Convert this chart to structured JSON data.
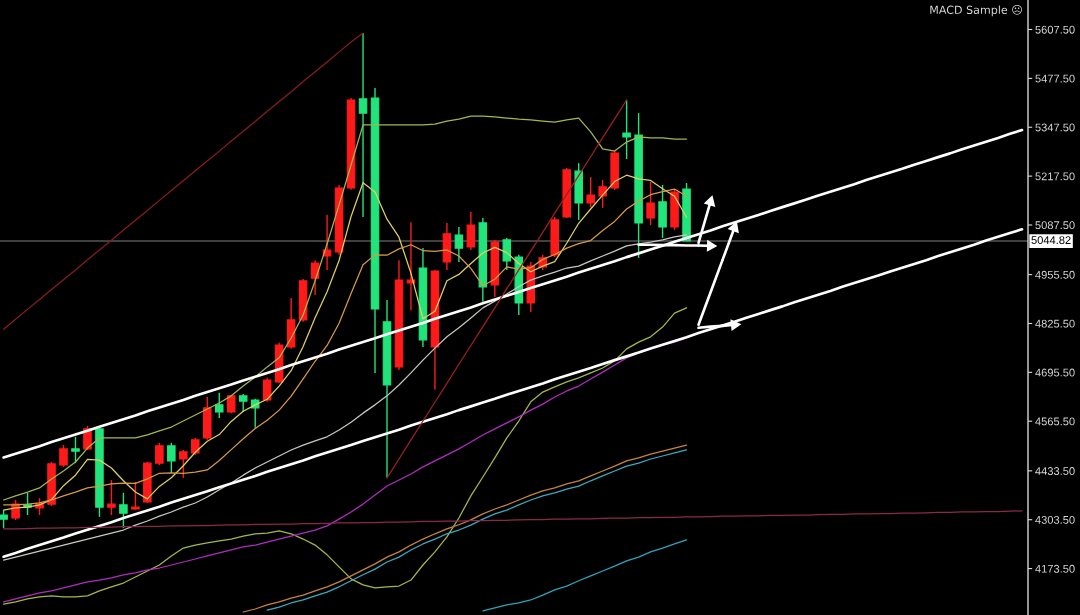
{
  "chart_data": {
    "type": "candlestick",
    "categories": [
      null,
      null,
      null,
      null,
      null,
      null,
      null,
      null,
      null,
      null,
      null,
      null,
      null,
      null,
      null,
      null,
      null,
      null,
      null,
      null,
      null,
      null,
      null,
      null,
      null,
      null,
      null,
      null,
      null,
      null,
      null,
      null,
      null,
      null,
      null,
      null,
      null,
      null,
      null,
      null,
      null,
      null,
      null,
      null,
      null,
      null,
      null,
      null,
      null,
      null,
      null,
      null,
      null,
      null,
      null,
      null,
      null,
      null,
      null,
      null,
      null,
      null,
      null,
      null,
      null,
      null,
      null,
      null,
      null,
      null,
      null,
      null,
      null,
      null,
      null,
      null,
      null,
      null,
      null,
      null,
      null,
      null,
      null,
      null,
      null,
      null
    ],
    "ohlc": [
      [
        4316,
        4329,
        4281,
        4305
      ],
      [
        4308,
        4356,
        4303,
        4345
      ],
      [
        4343,
        4375,
        4316,
        4337
      ],
      [
        4335,
        4361,
        4316,
        4345
      ],
      [
        4345,
        4457,
        4340,
        4452
      ],
      [
        4449,
        4502,
        4444,
        4492
      ],
      [
        4492,
        4524,
        4454,
        4486
      ],
      [
        4492,
        4553,
        4489,
        4545
      ],
      [
        4545,
        4548,
        4311,
        4337
      ],
      [
        4337,
        4409,
        4316,
        4345
      ],
      [
        4343,
        4375,
        4281,
        4321
      ],
      [
        4332,
        4404,
        4329,
        4337
      ],
      [
        4351,
        4457,
        4348,
        4454
      ],
      [
        4454,
        4508,
        4449,
        4500
      ],
      [
        4500,
        4508,
        4428,
        4460
      ],
      [
        4465,
        4489,
        4415,
        4484
      ],
      [
        4481,
        4521,
        4476,
        4516
      ],
      [
        4521,
        4630,
        4516,
        4601
      ],
      [
        4609,
        4641,
        4574,
        4590
      ],
      [
        4590,
        4635,
        4587,
        4633
      ],
      [
        4633,
        4638,
        4590,
        4619
      ],
      [
        4622,
        4625,
        4548,
        4601
      ],
      [
        4622,
        4681,
        4617,
        4675
      ],
      [
        4670,
        4774,
        4667,
        4768
      ],
      [
        4763,
        4893,
        4758,
        4835
      ],
      [
        4835,
        4944,
        4830,
        4939
      ],
      [
        4946,
        4994,
        4901,
        4986
      ],
      [
        5005,
        5114,
        4968,
        5021
      ],
      [
        5016,
        5194,
        5008,
        5186
      ],
      [
        5186,
        5425,
        5181,
        5420
      ],
      [
        5423,
        5598,
        5109,
        5385
      ],
      [
        5425,
        5452,
        4694,
        4864
      ],
      [
        4830,
        4888,
        4415,
        4662
      ],
      [
        4710,
        4994,
        4702,
        4941
      ],
      [
        4933,
        5095,
        4861,
        4941
      ],
      [
        4973,
        5026,
        4763,
        4782
      ],
      [
        4763,
        4968,
        4649,
        4965
      ],
      [
        4989,
        5093,
        4968,
        5064
      ],
      [
        5061,
        5082,
        4989,
        5026
      ],
      [
        5029,
        5122,
        5021,
        5087
      ],
      [
        5093,
        5106,
        4883,
        4923
      ],
      [
        4928,
        5048,
        4896,
        5042
      ],
      [
        5048,
        5053,
        4968,
        4992
      ],
      [
        5002,
        5008,
        4848,
        4880
      ],
      [
        4880,
        4989,
        4856,
        4978
      ],
      [
        4976,
        5008,
        4968,
        5000
      ],
      [
        5008,
        5109,
        5002,
        5101
      ],
      [
        5109,
        5239,
        5106,
        5234
      ],
      [
        5231,
        5252,
        5101,
        5146
      ],
      [
        5146,
        5215,
        5135,
        5167
      ],
      [
        5165,
        5207,
        5133,
        5189
      ],
      [
        5186,
        5284,
        5181,
        5279
      ],
      [
        5332,
        5420,
        5263,
        5322
      ],
      [
        5327,
        5385,
        5000,
        5093
      ],
      [
        5106,
        5202,
        5087,
        5146
      ],
      [
        5149,
        5194,
        5053,
        5082
      ],
      [
        5082,
        5181,
        5074,
        5175
      ],
      [
        5183,
        5199,
        5044.82,
        5044.82
      ],
      null,
      null,
      null,
      null,
      null,
      null,
      null,
      null,
      null,
      null,
      null,
      null,
      null,
      null,
      null,
      null,
      null,
      null,
      null,
      null,
      null,
      null,
      null,
      null,
      null,
      null,
      null,
      null
    ],
    "colors": [
      "#21e57a",
      "#ff1a1a",
      "#21e57a",
      "#ff1a1a",
      "#ff1a1a",
      "#ff1a1a",
      "#21e57a",
      "#ff1a1a",
      "#21e57a",
      "#ff1a1a",
      "#21e57a",
      "#ff1a1a",
      "#ff1a1a",
      "#ff1a1a",
      "#21e57a",
      "#ff1a1a",
      "#ff1a1a",
      "#ff1a1a",
      "#21e57a",
      "#ff1a1a",
      "#21e57a",
      "#21e57a",
      "#ff1a1a",
      "#ff1a1a",
      "#ff1a1a",
      "#ff1a1a",
      "#ff1a1a",
      "#ff1a1a",
      "#ff1a1a",
      "#ff1a1a",
      "#21e57a",
      "#21e57a",
      "#21e57a",
      "#ff1a1a",
      "#ff1a1a",
      "#21e57a",
      "#ff1a1a",
      "#ff1a1a",
      "#21e57a",
      "#ff1a1a",
      "#21e57a",
      "#ff1a1a",
      "#21e57a",
      "#21e57a",
      "#ff1a1a",
      "#ff1a1a",
      "#ff1a1a",
      "#ff1a1a",
      "#21e57a",
      "#ff1a1a",
      "#ff1a1a",
      "#ff1a1a",
      "#21e57a",
      "#21e57a",
      "#ff1a1a",
      "#21e57a",
      "#ff1a1a",
      "#21e57a",
      null,
      null,
      null,
      null,
      null,
      null,
      null,
      null,
      null,
      null,
      null,
      null,
      null,
      null,
      null,
      null,
      null,
      null,
      null,
      null,
      null,
      null,
      null,
      null,
      null,
      null,
      null,
      null
    ],
    "series": [
      {
        "type": "line",
        "color": "#a4b848",
        "values": [
          4356,
          4367,
          4377,
          4388,
          4412,
          4433,
          4457,
          4494,
          4521,
          4521,
          4521,
          4521,
          4529,
          4540,
          4550,
          4566,
          4582,
          4598,
          4614,
          4633,
          4659,
          4683,
          4710,
          4734,
          4787,
          4848,
          4939,
          5037,
          5141,
          5247,
          5354,
          5354,
          5354,
          5354,
          5354,
          5354,
          5356,
          5364,
          5369,
          5377,
          5377,
          5375,
          5372,
          5369,
          5367,
          5364,
          5361,
          5367,
          5372,
          5335,
          5290,
          5284,
          5308,
          5322,
          5319,
          5319,
          5316,
          5316,
          null,
          null,
          null,
          null,
          null,
          null,
          null,
          null,
          null,
          null,
          null,
          null,
          null,
          null,
          null,
          null,
          null,
          null,
          null,
          null,
          null,
          null,
          null,
          null,
          null,
          null,
          null,
          null
        ]
      },
      {
        "type": "line",
        "color": "#a4b848",
        "values": [
          4079,
          4085,
          4093,
          4098,
          4101,
          4098,
          4098,
          4101,
          4114,
          4125,
          4135,
          4151,
          4167,
          4183,
          4207,
          4228,
          4236,
          4242,
          4247,
          4252,
          4260,
          4266,
          4268,
          4274,
          4266,
          4252,
          4236,
          4210,
          4178,
          4146,
          4130,
          4122,
          4125,
          4127,
          4143,
          4183,
          4218,
          4258,
          4308,
          4367,
          4417,
          4468,
          4521,
          4566,
          4617,
          4643,
          4657,
          4670,
          4681,
          4694,
          4707,
          4726,
          4758,
          4776,
          4790,
          4816,
          4853,
          4867,
          null,
          null,
          null,
          null,
          null,
          null,
          null,
          null,
          null,
          null,
          null,
          null,
          null,
          null,
          null,
          null,
          null,
          null,
          null,
          null,
          null,
          null,
          null,
          null,
          null,
          null,
          null,
          null
        ]
      },
      {
        "type": "line",
        "color": "#e0d060",
        "values": [
          4329,
          4335,
          4337,
          4343,
          4357,
          4394,
          4422,
          4464,
          4462,
          4441,
          4407,
          4377,
          4359,
          4392,
          4415,
          4447,
          4483,
          4512,
          4530,
          4565,
          4592,
          4609,
          4624,
          4659,
          4700,
          4764,
          4841,
          4910,
          4993,
          5110,
          5200,
          5175,
          5103,
          5055,
          4959,
          4838,
          4858,
          4939,
          4956,
          4985,
          5013,
          5028,
          5014,
          4985,
          4963,
          4978,
          4990,
          5039,
          5092,
          5130,
          5167,
          5203,
          5220,
          5210,
          5206,
          5184,
          5164,
          5108,
          null,
          null,
          null,
          null,
          null,
          null,
          null,
          null,
          null,
          null,
          null,
          null,
          null,
          null,
          null,
          null,
          null,
          null,
          null,
          null,
          null,
          null,
          null,
          null,
          null,
          null,
          null,
          null
        ]
      },
      {
        "type": "line",
        "color": "#d89a40",
        "values": [
          4343,
          4343,
          4345,
          4348,
          4356,
          4367,
          4377,
          4388,
          4393,
          4399,
          4401,
          4400,
          4412,
          4427,
          4428,
          4427,
          4430,
          4436,
          4461,
          4490,
          4519,
          4546,
          4568,
          4595,
          4632,
          4678,
          4725,
          4767,
          4826,
          4905,
          4982,
          5008,
          5007,
          5024,
          5035,
          5019,
          5017,
          5021,
          5005,
          4972,
          4926,
          4943,
          4976,
          4970,
          4974,
          4996,
          5009,
          5026,
          5038,
          5046,
          5073,
          5097,
          5130,
          5151,
          5168,
          5176,
          5183,
          5164,
          null,
          null,
          null,
          null,
          null,
          null,
          null,
          null,
          null,
          null,
          null,
          null,
          null,
          null,
          null,
          null,
          null,
          null,
          null,
          null,
          null,
          null,
          null,
          null,
          null,
          null,
          null,
          null
        ]
      },
      {
        "type": "line",
        "color": "#c8c8c0",
        "values": [
          4196,
          4204,
          4212,
          4220,
          4228,
          4236,
          4244,
          4252,
          4260,
          4268,
          4276,
          4289,
          4300,
          4313,
          4324,
          4337,
          4348,
          4364,
          4383,
          4401,
          4422,
          4441,
          4457,
          4473,
          4489,
          4502,
          4513,
          4524,
          4542,
          4563,
          4587,
          4609,
          4633,
          4662,
          4694,
          4728,
          4760,
          4790,
          4814,
          4840,
          4867,
          4885,
          4904,
          4923,
          4941,
          4952,
          4962,
          4973,
          4978,
          4992,
          5005,
          5018,
          5032,
          5037,
          5042,
          5048,
          5056,
          5061,
          null,
          null,
          null,
          null,
          null,
          null,
          null,
          null,
          null,
          null,
          null,
          null,
          null,
          null,
          null,
          null,
          null,
          null,
          null,
          null,
          null,
          null,
          null,
          null,
          null,
          null,
          null,
          null
        ]
      },
      {
        "type": "line",
        "color": "#b02cc0",
        "values": [
          4085,
          4093,
          4101,
          4109,
          4114,
          4122,
          4130,
          4138,
          4143,
          4149,
          4157,
          4162,
          4170,
          4175,
          4183,
          4191,
          4199,
          4207,
          4215,
          4223,
          4231,
          4236,
          4244,
          4252,
          4260,
          4268,
          4276,
          4287,
          4305,
          4324,
          4345,
          4369,
          4393,
          4409,
          4425,
          4444,
          4460,
          4476,
          4492,
          4510,
          4529,
          4545,
          4561,
          4577,
          4595,
          4611,
          4630,
          4646,
          4659,
          4678,
          4696,
          4715,
          4734,
          4747,
          4758,
          4768,
          4776,
          4787,
          null,
          null,
          null,
          null,
          null,
          null,
          null,
          null,
          null,
          null,
          null,
          null,
          null,
          null,
          null,
          null,
          null,
          null,
          null,
          null,
          null,
          null,
          null,
          null,
          null,
          null,
          null,
          null
        ]
      },
      {
        "type": "line",
        "color": "#c8843a",
        "values": [
          null,
          null,
          null,
          null,
          null,
          null,
          null,
          null,
          null,
          null,
          null,
          null,
          null,
          null,
          null,
          null,
          null,
          null,
          null,
          null,
          4058,
          4066,
          4077,
          4085,
          4095,
          4103,
          4114,
          4125,
          4138,
          4154,
          4170,
          4186,
          4204,
          4218,
          4236,
          4252,
          4266,
          4279,
          4290,
          4303,
          4319,
          4332,
          4343,
          4356,
          4369,
          4380,
          4388,
          4399,
          4407,
          4420,
          4433,
          4446,
          4460,
          4468,
          4478,
          4486,
          4494,
          4502,
          null,
          null,
          null,
          null,
          null,
          null,
          null,
          null,
          null,
          null,
          null,
          null,
          null,
          null,
          null,
          null,
          null,
          null,
          null,
          null,
          null,
          null,
          null,
          null,
          null,
          null,
          null,
          null
        ]
      },
      {
        "type": "line",
        "color": "#3aaac0",
        "values": [
          null,
          null,
          null,
          null,
          null,
          null,
          null,
          null,
          null,
          null,
          null,
          null,
          null,
          null,
          null,
          null,
          null,
          null,
          null,
          null,
          null,
          null,
          4063,
          4071,
          4082,
          4090,
          4101,
          4111,
          4125,
          4141,
          4157,
          4172,
          4191,
          4204,
          4223,
          4239,
          4252,
          4266,
          4276,
          4289,
          4305,
          4319,
          4329,
          4343,
          4356,
          4367,
          4375,
          4385,
          4393,
          4407,
          4420,
          4433,
          4446,
          4454,
          4465,
          4473,
          4481,
          4489,
          null,
          null,
          null,
          null,
          null,
          null,
          null,
          null,
          null,
          null,
          null,
          null,
          null,
          null,
          null,
          null,
          null,
          null,
          null,
          null,
          null,
          null,
          null,
          null,
          null,
          null,
          null,
          null
        ]
      },
      {
        "type": "line",
        "color": "#2fa4bc",
        "values": [
          null,
          null,
          null,
          null,
          null,
          null,
          null,
          null,
          null,
          null,
          null,
          null,
          null,
          null,
          null,
          null,
          null,
          null,
          null,
          null,
          null,
          null,
          null,
          null,
          null,
          null,
          null,
          null,
          null,
          null,
          null,
          null,
          null,
          null,
          null,
          null,
          null,
          null,
          null,
          null,
          4061,
          4069,
          4077,
          4082,
          4090,
          4103,
          4117,
          4127,
          4141,
          4154,
          4167,
          4180,
          4194,
          4204,
          4218,
          4228,
          4239,
          4250,
          null,
          null,
          null,
          null,
          null,
          null,
          null,
          null,
          null,
          null,
          null,
          null,
          null,
          null,
          null,
          null,
          null,
          null,
          null,
          null,
          null,
          null,
          null,
          null,
          null,
          null,
          null,
          null
        ]
      },
      {
        "type": "line",
        "color": "#ffffff",
        "values": [
          4469,
          4479,
          4489,
          4499,
          4510,
          4520,
          4530,
          4540,
          4551,
          4561,
          4571,
          4581,
          4592,
          4602,
          4612,
          4622,
          4633,
          4643,
          4653,
          4663,
          4674,
          4684,
          4694,
          4704,
          4715,
          4725,
          4735,
          4745,
          4756,
          4766,
          4776,
          4786,
          4797,
          4807,
          4817,
          4827,
          4838,
          4848,
          4858,
          4868,
          4879,
          4889,
          4899,
          4909,
          4920,
          4930,
          4940,
          4950,
          4961,
          4971,
          4981,
          4991,
          5002,
          5012,
          5022,
          5032,
          5043,
          5053,
          5063,
          5073,
          5084,
          5094,
          5104,
          5114,
          5125,
          5135,
          5145,
          5155,
          5166,
          5176,
          5186,
          5196,
          5207,
          5217,
          5227,
          5237,
          5248,
          5258,
          5268,
          5278,
          5289,
          5299,
          5309,
          5319,
          5330,
          5340
        ]
      },
      {
        "type": "line",
        "color": "#ffffff",
        "values": [
          4205,
          4215,
          4226,
          4236,
          4246,
          4256,
          4267,
          4277,
          4287,
          4297,
          4308,
          4318,
          4328,
          4338,
          4349,
          4359,
          4369,
          4379,
          4390,
          4400,
          4410,
          4420,
          4431,
          4441,
          4451,
          4461,
          4472,
          4482,
          4492,
          4502,
          4513,
          4523,
          4533,
          4543,
          4554,
          4564,
          4574,
          4584,
          4595,
          4605,
          4615,
          4625,
          4636,
          4646,
          4656,
          4666,
          4677,
          4687,
          4697,
          4707,
          4718,
          4728,
          4738,
          4748,
          4759,
          4769,
          4779,
          4789,
          4800,
          4810,
          4820,
          4830,
          4841,
          4851,
          4861,
          4871,
          4882,
          4892,
          4902,
          4912,
          4923,
          4933,
          4943,
          4953,
          4964,
          4974,
          4984,
          4994,
          5005,
          5015,
          5025,
          5035,
          5046,
          5056,
          5066,
          5076
        ]
      },
      {
        "type": "line",
        "color": "#8b1c1c",
        "values": [
          4810,
          4837,
          4863,
          4889,
          4916,
          4942,
          4968,
          4995,
          5021,
          5047,
          5074,
          5100,
          5126,
          5153,
          5179,
          5205,
          5232,
          5258,
          5284,
          5311,
          5337,
          5363,
          5390,
          5416,
          5442,
          5469,
          5495,
          5521,
          5548,
          5574,
          5598,
          null,
          null,
          null,
          null,
          null,
          null,
          null,
          null,
          null,
          null,
          null,
          null,
          null,
          null,
          null,
          null,
          null,
          null,
          null,
          null,
          null,
          null,
          null,
          null,
          null,
          null,
          null,
          null,
          null,
          null,
          null,
          null,
          null,
          null,
          null,
          null,
          null,
          null,
          null,
          null,
          null,
          null,
          null,
          null,
          null,
          null,
          null,
          null,
          null,
          null,
          null,
          null,
          null,
          null,
          null
        ]
      },
      {
        "type": "line",
        "color": "#a02020",
        "values": [
          null,
          null,
          null,
          null,
          null,
          null,
          null,
          null,
          null,
          null,
          null,
          null,
          null,
          null,
          null,
          null,
          null,
          null,
          null,
          null,
          null,
          null,
          null,
          null,
          null,
          null,
          null,
          null,
          null,
          null,
          null,
          null,
          4415,
          4465,
          4516,
          4566,
          4616,
          4666,
          4717,
          4767,
          4817,
          4867,
          4918,
          4968,
          5018,
          5068,
          5119,
          5169,
          5219,
          5269,
          5320,
          5370,
          5420,
          null,
          null,
          null,
          null,
          null,
          null,
          null,
          null,
          null,
          null,
          null,
          null,
          null,
          null,
          null,
          null,
          null,
          null,
          null,
          null,
          null,
          null,
          null,
          null,
          null,
          null,
          null,
          null,
          null,
          null,
          null,
          null,
          null
        ]
      },
      {
        "type": "line",
        "color": "#8a2a4a",
        "values": [
          4279,
          4279,
          4280,
          4281,
          4281,
          4282,
          4282,
          4283,
          4283,
          4284,
          4285,
          4285,
          4286,
          4286,
          4287,
          4287,
          4288,
          4288,
          4289,
          4290,
          4290,
          4291,
          4291,
          4292,
          4292,
          4293,
          4293,
          4294,
          4295,
          4295,
          4296,
          4296,
          4297,
          4297,
          4298,
          4299,
          4299,
          4300,
          4300,
          4301,
          4301,
          4302,
          4302,
          4303,
          4304,
          4304,
          4305,
          4305,
          4306,
          4306,
          4307,
          4308,
          4308,
          4309,
          4309,
          4310,
          4310,
          4311,
          4311,
          4312,
          4313,
          4313,
          4314,
          4314,
          4315,
          4315,
          4316,
          4316,
          4317,
          4318,
          4318,
          4319,
          4319,
          4320,
          4320,
          4321,
          4321,
          4322,
          4323,
          4323,
          4324,
          4324,
          4325,
          4325,
          4326,
          4327
        ]
      },
      {
        "type": "line",
        "color": "#ffffff",
        "values": [
          null,
          null,
          null,
          null,
          null,
          null,
          null,
          null,
          null,
          null,
          null,
          null,
          null,
          null,
          null,
          null,
          null,
          null,
          null,
          null,
          null,
          null,
          null,
          null,
          null,
          null,
          null,
          null,
          null,
          null,
          null,
          null,
          null,
          null,
          null,
          null,
          null,
          null,
          null,
          null,
          null,
          null,
          null,
          null,
          null,
          null,
          null,
          null,
          null,
          null,
          null,
          null,
          null,
          5035,
          5035,
          5034,
          5034,
          5033,
          5033,
          null,
          null,
          null,
          null,
          null,
          null,
          null,
          null,
          null,
          null,
          null,
          null,
          null,
          null,
          null,
          null,
          null,
          null,
          null,
          null,
          null,
          null,
          null,
          null,
          null,
          null,
          null
        ]
      },
      {
        "type": "line",
        "color": "#ffffff",
        "marker": "triangle",
        "values": [
          null,
          null,
          null,
          null,
          null,
          null,
          null,
          null,
          null,
          null,
          null,
          null,
          null,
          null,
          null,
          null,
          null,
          null,
          null,
          null,
          null,
          null,
          null,
          null,
          null,
          null,
          null,
          null,
          null,
          null,
          null,
          null,
          null,
          null,
          null,
          null,
          null,
          null,
          null,
          null,
          null,
          null,
          null,
          null,
          null,
          null,
          null,
          null,
          null,
          null,
          null,
          null,
          null,
          null,
          null,
          null,
          null,
          null,
          5033,
          5032,
          null,
          null,
          null,
          null,
          null,
          null,
          null,
          null,
          null,
          null,
          null,
          null,
          null,
          null,
          null,
          null,
          null,
          null,
          null,
          null,
          null,
          null,
          null,
          null,
          null,
          null
        ]
      },
      {
        "type": "line",
        "color": "#ffffff",
        "marker": "triangle",
        "values": [
          null,
          null,
          null,
          null,
          null,
          null,
          null,
          null,
          null,
          null,
          null,
          null,
          null,
          null,
          null,
          null,
          null,
          null,
          null,
          null,
          null,
          null,
          null,
          null,
          null,
          null,
          null,
          null,
          null,
          null,
          null,
          null,
          null,
          null,
          null,
          null,
          null,
          null,
          null,
          null,
          null,
          null,
          null,
          null,
          null,
          null,
          null,
          null,
          null,
          null,
          null,
          null,
          null,
          null,
          null,
          null,
          null,
          null,
          5040,
          5149,
          null,
          null,
          null,
          null,
          null,
          null,
          null,
          null,
          null,
          null,
          null,
          null,
          null,
          null,
          null,
          null,
          null,
          null,
          null,
          null,
          null,
          null,
          null,
          null,
          null,
          null
        ]
      },
      {
        "type": "line",
        "color": "#ffffff",
        "values": [
          null,
          null,
          null,
          null,
          null,
          null,
          null,
          null,
          null,
          null,
          null,
          null,
          null,
          null,
          null,
          null,
          null,
          null,
          null,
          null,
          null,
          null,
          null,
          null,
          null,
          null,
          null,
          null,
          null,
          null,
          null,
          null,
          null,
          null,
          null,
          null,
          null,
          null,
          null,
          null,
          null,
          null,
          null,
          null,
          null,
          null,
          null,
          null,
          null,
          null,
          null,
          null,
          null,
          null,
          null,
          null,
          null,
          null,
          4822,
          4908,
          4994,
          null,
          null,
          null,
          null,
          null,
          null,
          null,
          null,
          null,
          null,
          null,
          null,
          null,
          null,
          null,
          null,
          null,
          null,
          null,
          null,
          null,
          null,
          null,
          null,
          null
        ]
      },
      {
        "type": "line",
        "color": "#ffffff",
        "marker": "triangle",
        "values": [
          null,
          null,
          null,
          null,
          null,
          null,
          null,
          null,
          null,
          null,
          null,
          null,
          null,
          null,
          null,
          null,
          null,
          null,
          null,
          null,
          null,
          null,
          null,
          null,
          null,
          null,
          null,
          null,
          null,
          null,
          null,
          null,
          null,
          null,
          null,
          null,
          null,
          null,
          null,
          null,
          null,
          null,
          null,
          null,
          null,
          null,
          null,
          null,
          null,
          null,
          null,
          null,
          null,
          null,
          null,
          null,
          null,
          null,
          null,
          null,
          4994,
          5080,
          null,
          null,
          null,
          null,
          null,
          null,
          null,
          null,
          null,
          null,
          null,
          null,
          null,
          null,
          null,
          null,
          null,
          null,
          null,
          null,
          null,
          null,
          null,
          null
        ]
      },
      {
        "type": "line",
        "color": "#ffffff",
        "values": [
          null,
          null,
          null,
          null,
          null,
          null,
          null,
          null,
          null,
          null,
          null,
          null,
          null,
          null,
          null,
          null,
          null,
          null,
          null,
          null,
          null,
          null,
          null,
          null,
          null,
          null,
          null,
          null,
          null,
          null,
          null,
          null,
          null,
          null,
          null,
          null,
          null,
          null,
          null,
          null,
          null,
          null,
          null,
          null,
          null,
          null,
          null,
          null,
          null,
          null,
          null,
          null,
          null,
          null,
          null,
          null,
          null,
          null,
          4814,
          4817,
          4819,
          null,
          null,
          null,
          null,
          null,
          null,
          null,
          null,
          null,
          null,
          null,
          null,
          null,
          null,
          null,
          null,
          null,
          null,
          null,
          null,
          null,
          null,
          null,
          null,
          null
        ]
      },
      {
        "type": "line",
        "color": "#ffffff",
        "marker": "triangle",
        "values": [
          null,
          null,
          null,
          null,
          null,
          null,
          null,
          null,
          null,
          null,
          null,
          null,
          null,
          null,
          null,
          null,
          null,
          null,
          null,
          null,
          null,
          null,
          null,
          null,
          null,
          null,
          null,
          null,
          null,
          null,
          null,
          null,
          null,
          null,
          null,
          null,
          null,
          null,
          null,
          null,
          null,
          null,
          null,
          null,
          null,
          null,
          null,
          null,
          null,
          null,
          null,
          null,
          null,
          null,
          null,
          null,
          null,
          null,
          null,
          null,
          4819,
          4822,
          null,
          null,
          null,
          null,
          null,
          null,
          null,
          null,
          null,
          null,
          null,
          null,
          null,
          null,
          null,
          null,
          null,
          null,
          null,
          null,
          null,
          null,
          null,
          null
        ]
      }
    ],
    "ylim": [
      4050,
      5686
    ],
    "yticks": [
      {
        "value": 5607.5,
        "label": "5607.50"
      },
      {
        "value": 5477.5,
        "label": "5477.50"
      },
      {
        "value": 5347.5,
        "label": "5347.50"
      },
      {
        "value": 5217.5,
        "label": "5217.50"
      },
      {
        "value": 5087.5,
        "label": "5087.50"
      },
      {
        "value": 4955.5,
        "label": "4955.50"
      },
      {
        "value": 4825.5,
        "label": "4825.50"
      },
      {
        "value": 4695.5,
        "label": "4695.50"
      },
      {
        "value": 4565.5,
        "label": "4565.50"
      },
      {
        "value": 4433.5,
        "label": "4433.50"
      },
      {
        "value": 4303.5,
        "label": "4303.50"
      },
      {
        "value": 4173.5,
        "label": "4173.50"
      }
    ],
    "tick_labels": "y",
    "ref_lines": [
      {
        "axis": "y",
        "value": 5044.82,
        "label": "5044.82",
        "color": "#808080"
      }
    ],
    "annotations": [
      "MACD Sample ☹"
    ]
  }
}
